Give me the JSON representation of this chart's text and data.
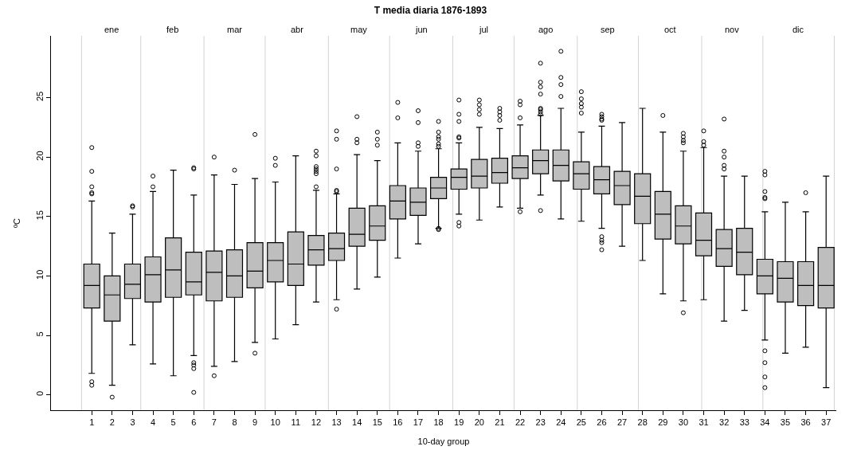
{
  "chart_data": {
    "type": "box",
    "title": "T media diaria 1876-1893",
    "xlabel": "10-day group",
    "ylabel": "ºC",
    "x": [
      1,
      2,
      3,
      4,
      5,
      6,
      7,
      8,
      9,
      10,
      11,
      12,
      13,
      14,
      15,
      16,
      17,
      18,
      19,
      20,
      21,
      22,
      23,
      24,
      25,
      26,
      27,
      28,
      29,
      30,
      31,
      32,
      33,
      34,
      35,
      36,
      37
    ],
    "xlim": [
      -1,
      37.5
    ],
    "xticks": [
      1,
      2,
      3,
      4,
      5,
      6,
      7,
      8,
      9,
      10,
      11,
      12,
      13,
      14,
      15,
      16,
      17,
      18,
      19,
      20,
      21,
      22,
      23,
      24,
      25,
      26,
      27,
      28,
      29,
      30,
      31,
      32,
      33,
      34,
      35,
      36,
      37
    ],
    "annotations": [
      "ene",
      "feb",
      "mar",
      "abr",
      "may",
      "jun",
      "jul",
      "ago",
      "sep",
      "oct",
      "nov",
      "dic"
    ],
    "ylim": [
      -1.3,
      30.2
    ],
    "yticks": [
      0,
      5,
      10,
      15,
      20,
      25
    ],
    "grid": false,
    "ref_lines": [
      {
        "axis": "x",
        "value": 0.5,
        "color": "#d3d3d3"
      },
      {
        "axis": "x",
        "value": 3.4,
        "color": "#d3d3d3"
      },
      {
        "axis": "x",
        "value": 6.5,
        "color": "#d3d3d3"
      },
      {
        "axis": "x",
        "value": 9.5,
        "color": "#d3d3d3"
      },
      {
        "axis": "x",
        "value": 12.6,
        "color": "#d3d3d3"
      },
      {
        "axis": "x",
        "value": 15.6,
        "color": "#d3d3d3"
      },
      {
        "axis": "x",
        "value": 18.7,
        "color": "#d3d3d3"
      },
      {
        "axis": "x",
        "value": 21.7,
        "color": "#d3d3d3"
      },
      {
        "axis": "x",
        "value": 24.8,
        "color": "#d3d3d3"
      },
      {
        "axis": "x",
        "value": 27.8,
        "color": "#d3d3d3"
      },
      {
        "axis": "x",
        "value": 30.9,
        "color": "#d3d3d3"
      },
      {
        "axis": "x",
        "value": 33.9,
        "color": "#d3d3d3"
      },
      {
        "axis": "x",
        "value": 37.4,
        "color": "#d3d3d3"
      }
    ],
    "series": [
      {
        "color": "#bebebe",
        "boxes": [
          {
            "low": 1.8,
            "q1": 7.3,
            "median": 9.2,
            "q3": 11.0,
            "high": 16.3,
            "outliers": [
              20.8,
              18.8,
              17.5,
              17.0,
              16.9,
              1.1,
              0.8
            ]
          },
          {
            "low": 0.8,
            "q1": 6.2,
            "median": 8.4,
            "q3": 10.0,
            "high": 13.6,
            "outliers": [
              -0.2
            ]
          },
          {
            "low": 4.2,
            "q1": 8.1,
            "median": 9.3,
            "q3": 11.0,
            "high": 15.2,
            "outliers": [
              15.9,
              15.8
            ]
          },
          {
            "low": 2.6,
            "q1": 7.8,
            "median": 10.1,
            "q3": 11.6,
            "high": 17.1,
            "outliers": [
              18.4,
              17.5
            ]
          },
          {
            "low": 1.6,
            "q1": 8.2,
            "median": 10.5,
            "q3": 13.2,
            "high": 18.9
          },
          {
            "low": 3.3,
            "q1": 8.4,
            "median": 9.5,
            "q3": 12.0,
            "high": 16.8,
            "outliers": [
              19.0,
              19.1,
              2.7,
              2.5,
              2.2,
              0.2
            ]
          },
          {
            "low": 2.4,
            "q1": 7.9,
            "median": 10.3,
            "q3": 12.1,
            "high": 18.5,
            "outliers": [
              20.0,
              1.6
            ]
          },
          {
            "low": 2.8,
            "q1": 8.2,
            "median": 10.0,
            "q3": 12.2,
            "high": 17.7,
            "outliers": [
              18.9
            ]
          },
          {
            "low": 4.4,
            "q1": 9.0,
            "median": 10.4,
            "q3": 12.8,
            "high": 18.2,
            "outliers": [
              21.9,
              3.5
            ]
          },
          {
            "low": 4.7,
            "q1": 9.5,
            "median": 11.3,
            "q3": 12.8,
            "high": 17.9,
            "outliers": [
              19.9,
              19.3
            ]
          },
          {
            "low": 5.9,
            "q1": 9.2,
            "median": 11.0,
            "q3": 13.7,
            "high": 20.1
          },
          {
            "low": 7.8,
            "q1": 10.9,
            "median": 12.2,
            "q3": 13.4,
            "high": 17.2,
            "outliers": [
              20.5,
              20.1,
              19.2,
              19.0,
              18.8,
              18.6,
              17.5
            ]
          },
          {
            "low": 8.0,
            "q1": 11.3,
            "median": 12.3,
            "q3": 13.6,
            "high": 16.9,
            "outliers": [
              22.2,
              21.5,
              19.0,
              17.2,
              17.1,
              7.2
            ]
          },
          {
            "low": 8.9,
            "q1": 12.5,
            "median": 13.5,
            "q3": 15.7,
            "high": 20.2,
            "outliers": [
              23.4,
              21.5,
              21.2
            ]
          },
          {
            "low": 9.9,
            "q1": 13.0,
            "median": 14.2,
            "q3": 15.9,
            "high": 19.7,
            "outliers": [
              22.1,
              21.5,
              21.0
            ]
          },
          {
            "low": 11.5,
            "q1": 14.8,
            "median": 16.3,
            "q3": 17.6,
            "high": 21.2,
            "outliers": [
              24.6,
              23.3
            ]
          },
          {
            "low": 12.7,
            "q1": 15.1,
            "median": 16.2,
            "q3": 17.4,
            "high": 20.5,
            "outliers": [
              23.9,
              22.9,
              21.2,
              20.9
            ]
          },
          {
            "low": 14.0,
            "q1": 16.5,
            "median": 17.4,
            "q3": 18.3,
            "high": 20.7,
            "outliers": [
              23.0,
              22.1,
              21.7,
              21.5,
              21.1,
              20.9,
              13.9,
              14.0
            ]
          },
          {
            "low": 15.2,
            "q1": 17.3,
            "median": 18.3,
            "q3": 19.0,
            "high": 21.2,
            "outliers": [
              24.8,
              23.6,
              23.0,
              21.7,
              21.6,
              14.5,
              14.2
            ]
          },
          {
            "low": 14.7,
            "q1": 17.4,
            "median": 18.4,
            "q3": 19.8,
            "high": 22.5,
            "outliers": [
              24.8,
              24.4,
              24.0,
              23.6
            ]
          },
          {
            "low": 15.8,
            "q1": 17.8,
            "median": 18.7,
            "q3": 19.9,
            "high": 22.4,
            "outliers": [
              24.1,
              23.8,
              23.5,
              23.1
            ]
          },
          {
            "low": 15.7,
            "q1": 18.2,
            "median": 19.1,
            "q3": 20.1,
            "high": 22.7,
            "outliers": [
              24.7,
              24.4,
              23.3,
              15.4
            ]
          },
          {
            "low": 16.8,
            "q1": 18.6,
            "median": 19.7,
            "q3": 20.6,
            "high": 23.5,
            "outliers": [
              27.9,
              26.3,
              25.9,
              25.3,
              24.1,
              24.0,
              23.8,
              23.6,
              15.5
            ]
          },
          {
            "low": 14.8,
            "q1": 18.0,
            "median": 19.3,
            "q3": 20.6,
            "high": 24.1,
            "outliers": [
              28.9,
              26.7,
              26.1,
              25.1
            ]
          },
          {
            "low": 14.6,
            "q1": 17.3,
            "median": 18.6,
            "q3": 19.6,
            "high": 22.1,
            "outliers": [
              25.5,
              24.9,
              24.5,
              24.2,
              23.7
            ]
          },
          {
            "low": 14.0,
            "q1": 16.9,
            "median": 18.1,
            "q3": 19.2,
            "high": 22.6,
            "outliers": [
              23.6,
              23.4,
              23.2,
              23.1,
              13.3,
              13.0,
              12.8,
              12.2
            ]
          },
          {
            "low": 12.5,
            "q1": 16.0,
            "median": 17.6,
            "q3": 18.8,
            "high": 22.9
          },
          {
            "low": 11.3,
            "q1": 14.4,
            "median": 16.7,
            "q3": 18.6,
            "high": 24.1
          },
          {
            "low": 8.5,
            "q1": 13.1,
            "median": 15.2,
            "q3": 17.1,
            "high": 22.1,
            "outliers": [
              23.5
            ]
          },
          {
            "low": 7.9,
            "q1": 12.7,
            "median": 14.2,
            "q3": 15.9,
            "high": 20.5,
            "outliers": [
              22.0,
              21.7,
              21.4,
              21.2,
              6.9
            ]
          },
          {
            "low": 8.0,
            "q1": 11.7,
            "median": 13.0,
            "q3": 15.3,
            "high": 20.8,
            "outliers": [
              22.2,
              21.3,
              21.0
            ]
          },
          {
            "low": 6.2,
            "q1": 10.8,
            "median": 12.3,
            "q3": 13.9,
            "high": 18.4,
            "outliers": [
              23.2,
              20.5,
              20.0,
              19.3,
              19.0
            ]
          },
          {
            "low": 7.1,
            "q1": 10.1,
            "median": 12.0,
            "q3": 14.0,
            "high": 18.4
          },
          {
            "low": 4.6,
            "q1": 8.5,
            "median": 10.0,
            "q3": 11.4,
            "high": 15.4,
            "outliers": [
              18.8,
              18.5,
              17.1,
              16.6,
              16.5,
              3.7,
              2.7,
              1.5,
              0.6
            ]
          },
          {
            "low": 3.5,
            "q1": 7.8,
            "median": 9.8,
            "q3": 11.2,
            "high": 16.2
          },
          {
            "low": 4.0,
            "q1": 7.5,
            "median": 9.2,
            "q3": 11.2,
            "high": 15.4,
            "outliers": [
              17.0
            ]
          },
          {
            "low": 0.6,
            "q1": 7.3,
            "median": 9.2,
            "q3": 12.4,
            "high": 18.4
          }
        ]
      }
    ]
  }
}
